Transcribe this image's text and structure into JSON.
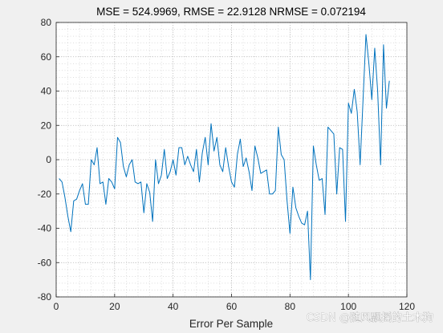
{
  "chart_data": {
    "type": "line",
    "title": "MSE = 524.9969, RMSE = 22.9128 NRMSE = 0.072194",
    "xlabel": "Error Per Sample",
    "ylabel": "",
    "xlim": [
      0,
      120
    ],
    "ylim": [
      -80,
      80
    ],
    "xticks": [
      "0",
      "20",
      "40",
      "60",
      "80",
      "100",
      "120"
    ],
    "yticks": [
      "-80",
      "-60",
      "-40",
      "-20",
      "0",
      "20",
      "40",
      "60",
      "80"
    ],
    "grid": "dotted minor grid",
    "series": [
      {
        "color": "#0072bd",
        "x": [
          1,
          2,
          3,
          4,
          5,
          6,
          7,
          8,
          9,
          10,
          11,
          12,
          13,
          14,
          15,
          16,
          17,
          18,
          19,
          20,
          21,
          22,
          23,
          24,
          25,
          26,
          27,
          28,
          29,
          30,
          31,
          32,
          33,
          34,
          35,
          36,
          37,
          38,
          39,
          40,
          41,
          42,
          43,
          44,
          45,
          46,
          47,
          48,
          49,
          50,
          51,
          52,
          53,
          54,
          55,
          56,
          57,
          58,
          59,
          60,
          61,
          62,
          63,
          64,
          65,
          66,
          67,
          68,
          69,
          70,
          71,
          72,
          73,
          74,
          75,
          76,
          77,
          78,
          79,
          80,
          81,
          82,
          83,
          84,
          85,
          86,
          87,
          88,
          89,
          90,
          91,
          92,
          93,
          94,
          95,
          96,
          97,
          98,
          99,
          100,
          101,
          102,
          103,
          104,
          105,
          106,
          107,
          108,
          109,
          110,
          111,
          112,
          113,
          114
        ],
        "values": [
          -11,
          -13,
          -22,
          -33,
          -42,
          -24,
          -23,
          -18,
          -14,
          -26,
          -26,
          0,
          -3,
          7,
          -14,
          -13,
          -26,
          -11,
          -13,
          -17,
          13,
          10,
          -4,
          -10,
          -3,
          0,
          -13,
          -14,
          -13,
          -31,
          -14,
          -19,
          -36,
          0,
          -14,
          -9,
          6,
          -11,
          -7,
          0,
          -9,
          7,
          7,
          -3,
          2,
          -3,
          -7,
          6,
          -13,
          4,
          13,
          -3,
          21,
          5,
          13,
          -3,
          -7,
          7,
          -4,
          -13,
          -16,
          3,
          12,
          -4,
          1,
          -7,
          -18,
          8,
          1,
          -8,
          -7,
          -6,
          -20,
          -20,
          -18,
          19,
          3,
          0,
          -24,
          -43,
          -16,
          -28,
          -33,
          -37,
          -38,
          -30,
          -70,
          8,
          -3,
          -12,
          -11,
          -32,
          19,
          17,
          15,
          -20,
          7,
          6,
          -36,
          33,
          27,
          41,
          28,
          -3,
          35,
          73,
          56,
          35,
          65,
          40,
          -3,
          67,
          30,
          46
        ]
      }
    ]
  },
  "watermark": "CSDN @随风飘摇的土木狗"
}
